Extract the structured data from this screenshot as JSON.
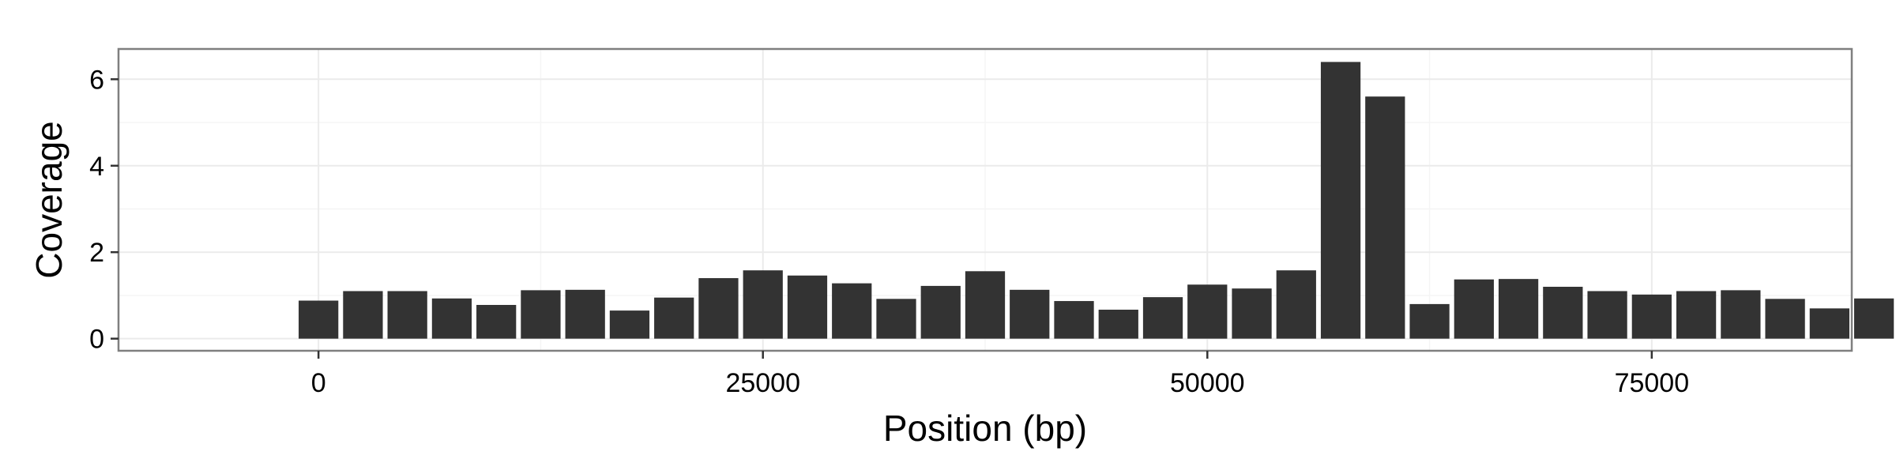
{
  "chart_data": {
    "type": "bar",
    "title": "",
    "xlabel": "Position (bp)",
    "ylabel": "Coverage",
    "xlim": [
      -11250,
      86250
    ],
    "ylim": [
      -0.28,
      6.7
    ],
    "x_ticks": [
      0,
      25000,
      50000,
      75000
    ],
    "y_ticks": [
      0,
      2,
      4,
      6
    ],
    "x_tick_labels": [
      "0",
      "25000",
      "50000",
      "75000"
    ],
    "y_tick_labels": [
      "0",
      "2",
      "4",
      "6"
    ],
    "grid": true,
    "legend": "none",
    "bin_width": 2500,
    "bar_color": "#333333",
    "grid_color": "#ebebeb",
    "panel_border_color": "#7f7f7f",
    "series": [
      {
        "x": [
          0,
          2500,
          5000,
          7500,
          10000,
          12500,
          15000,
          17500,
          20000,
          22500,
          25000,
          27500,
          30000,
          32500,
          35000,
          37500,
          40000,
          42500,
          45000,
          47500,
          50000,
          52500,
          55000,
          57500,
          60000,
          62500,
          65000,
          67500,
          70000,
          72500,
          75000,
          77500,
          80000,
          82500,
          85000,
          87500
        ],
        "values": [
          0.88,
          1.1,
          1.1,
          0.93,
          0.78,
          1.12,
          1.13,
          0.65,
          0.95,
          1.4,
          1.58,
          1.46,
          1.28,
          0.92,
          1.22,
          1.56,
          1.13,
          0.87,
          0.67,
          0.96,
          1.25,
          1.16,
          1.58,
          6.4,
          5.6,
          0.8,
          1.37,
          1.38,
          1.2,
          1.1,
          1.02,
          1.1,
          1.12,
          0.92,
          0.7,
          0.93
        ]
      }
    ]
  }
}
